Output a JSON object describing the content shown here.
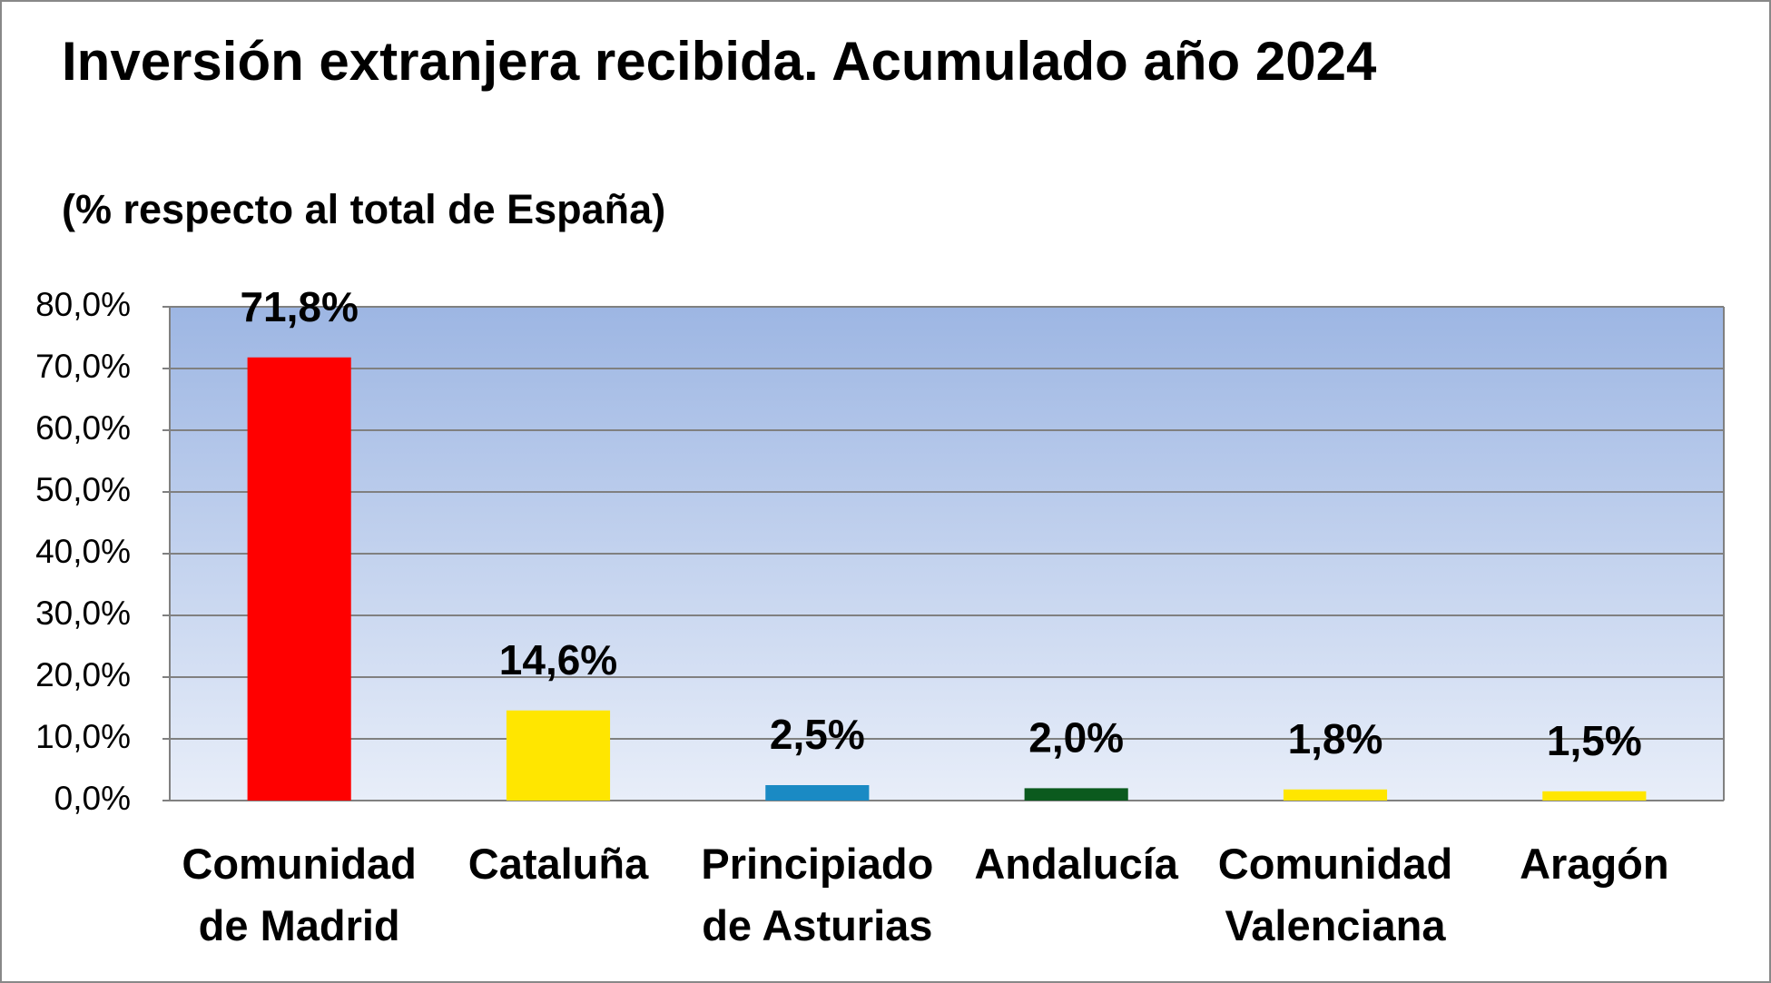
{
  "chart_data": {
    "type": "bar",
    "title": "Inversión extranjera recibida. Acumulado año 2024",
    "subtitle": "(% respecto al total de España)",
    "categories": [
      "Comunidad de Madrid",
      "Cataluña",
      "Principiado de Asturias",
      "Andalucía",
      "Comunidad Valenciana",
      "Aragón"
    ],
    "values": [
      71.8,
      14.6,
      2.5,
      2.0,
      1.8,
      1.5
    ],
    "value_labels": [
      "71,8%",
      "14,6%",
      "2,5%",
      "2,0%",
      "1,8%",
      "1,5%"
    ],
    "colors": [
      "#ff0000",
      "#ffe600",
      "#1a8ac4",
      "#0b5a1e",
      "#ffe600",
      "#ffe600"
    ],
    "ylim": [
      0,
      80
    ],
    "yticks": [
      {
        "value": 0,
        "label": "0,0%"
      },
      {
        "value": 10,
        "label": "10,0%"
      },
      {
        "value": 20,
        "label": "20,0%"
      },
      {
        "value": 30,
        "label": "30,0%"
      },
      {
        "value": 40,
        "label": "40,0%"
      },
      {
        "value": 50,
        "label": "50,0%"
      },
      {
        "value": 60,
        "label": "60,0%"
      },
      {
        "value": 70,
        "label": "70,0%"
      },
      {
        "value": 80,
        "label": "80,0%"
      }
    ],
    "grid": true
  }
}
